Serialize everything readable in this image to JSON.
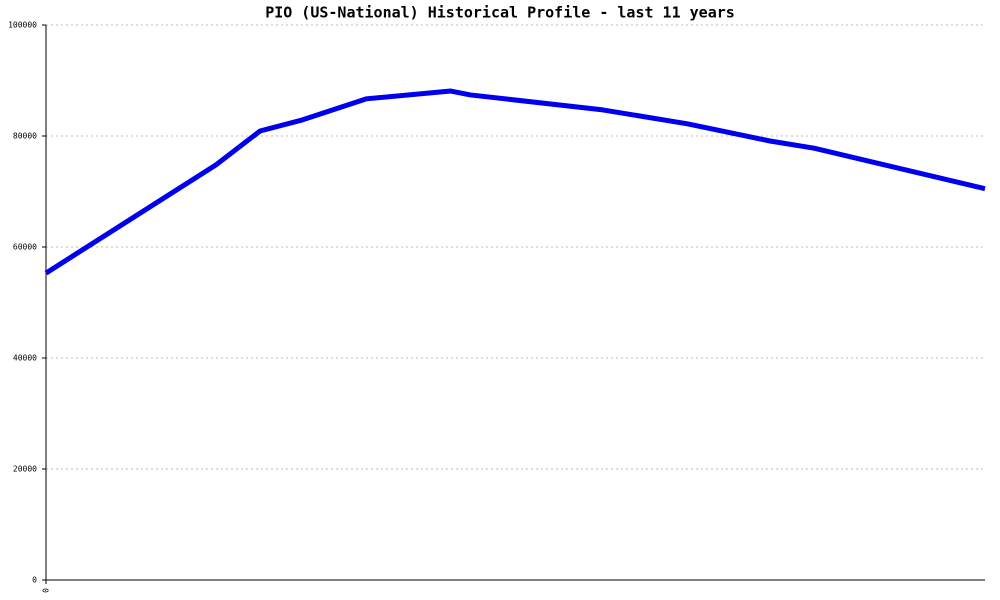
{
  "chart_data": {
    "type": "line",
    "title": "PIO (US-National) Historical Profile - last 11 years",
    "x": [
      0,
      18.1,
      22.8,
      27.3,
      34.1,
      43.1,
      45.2,
      59.3,
      68.3,
      77.1,
      81.8,
      100
    ],
    "xlim": [
      0,
      100
    ],
    "xticks": [
      0
    ],
    "series": [
      {
        "color": "#0000ee",
        "values": [
          55300,
          74800,
          80900,
          82900,
          86700,
          88100,
          87400,
          84700,
          82200,
          79100,
          77800,
          70500
        ]
      }
    ],
    "ylim": [
      0,
      100000
    ],
    "yticks": [
      0,
      20000,
      40000,
      60000,
      80000,
      100000
    ],
    "grid": true
  }
}
